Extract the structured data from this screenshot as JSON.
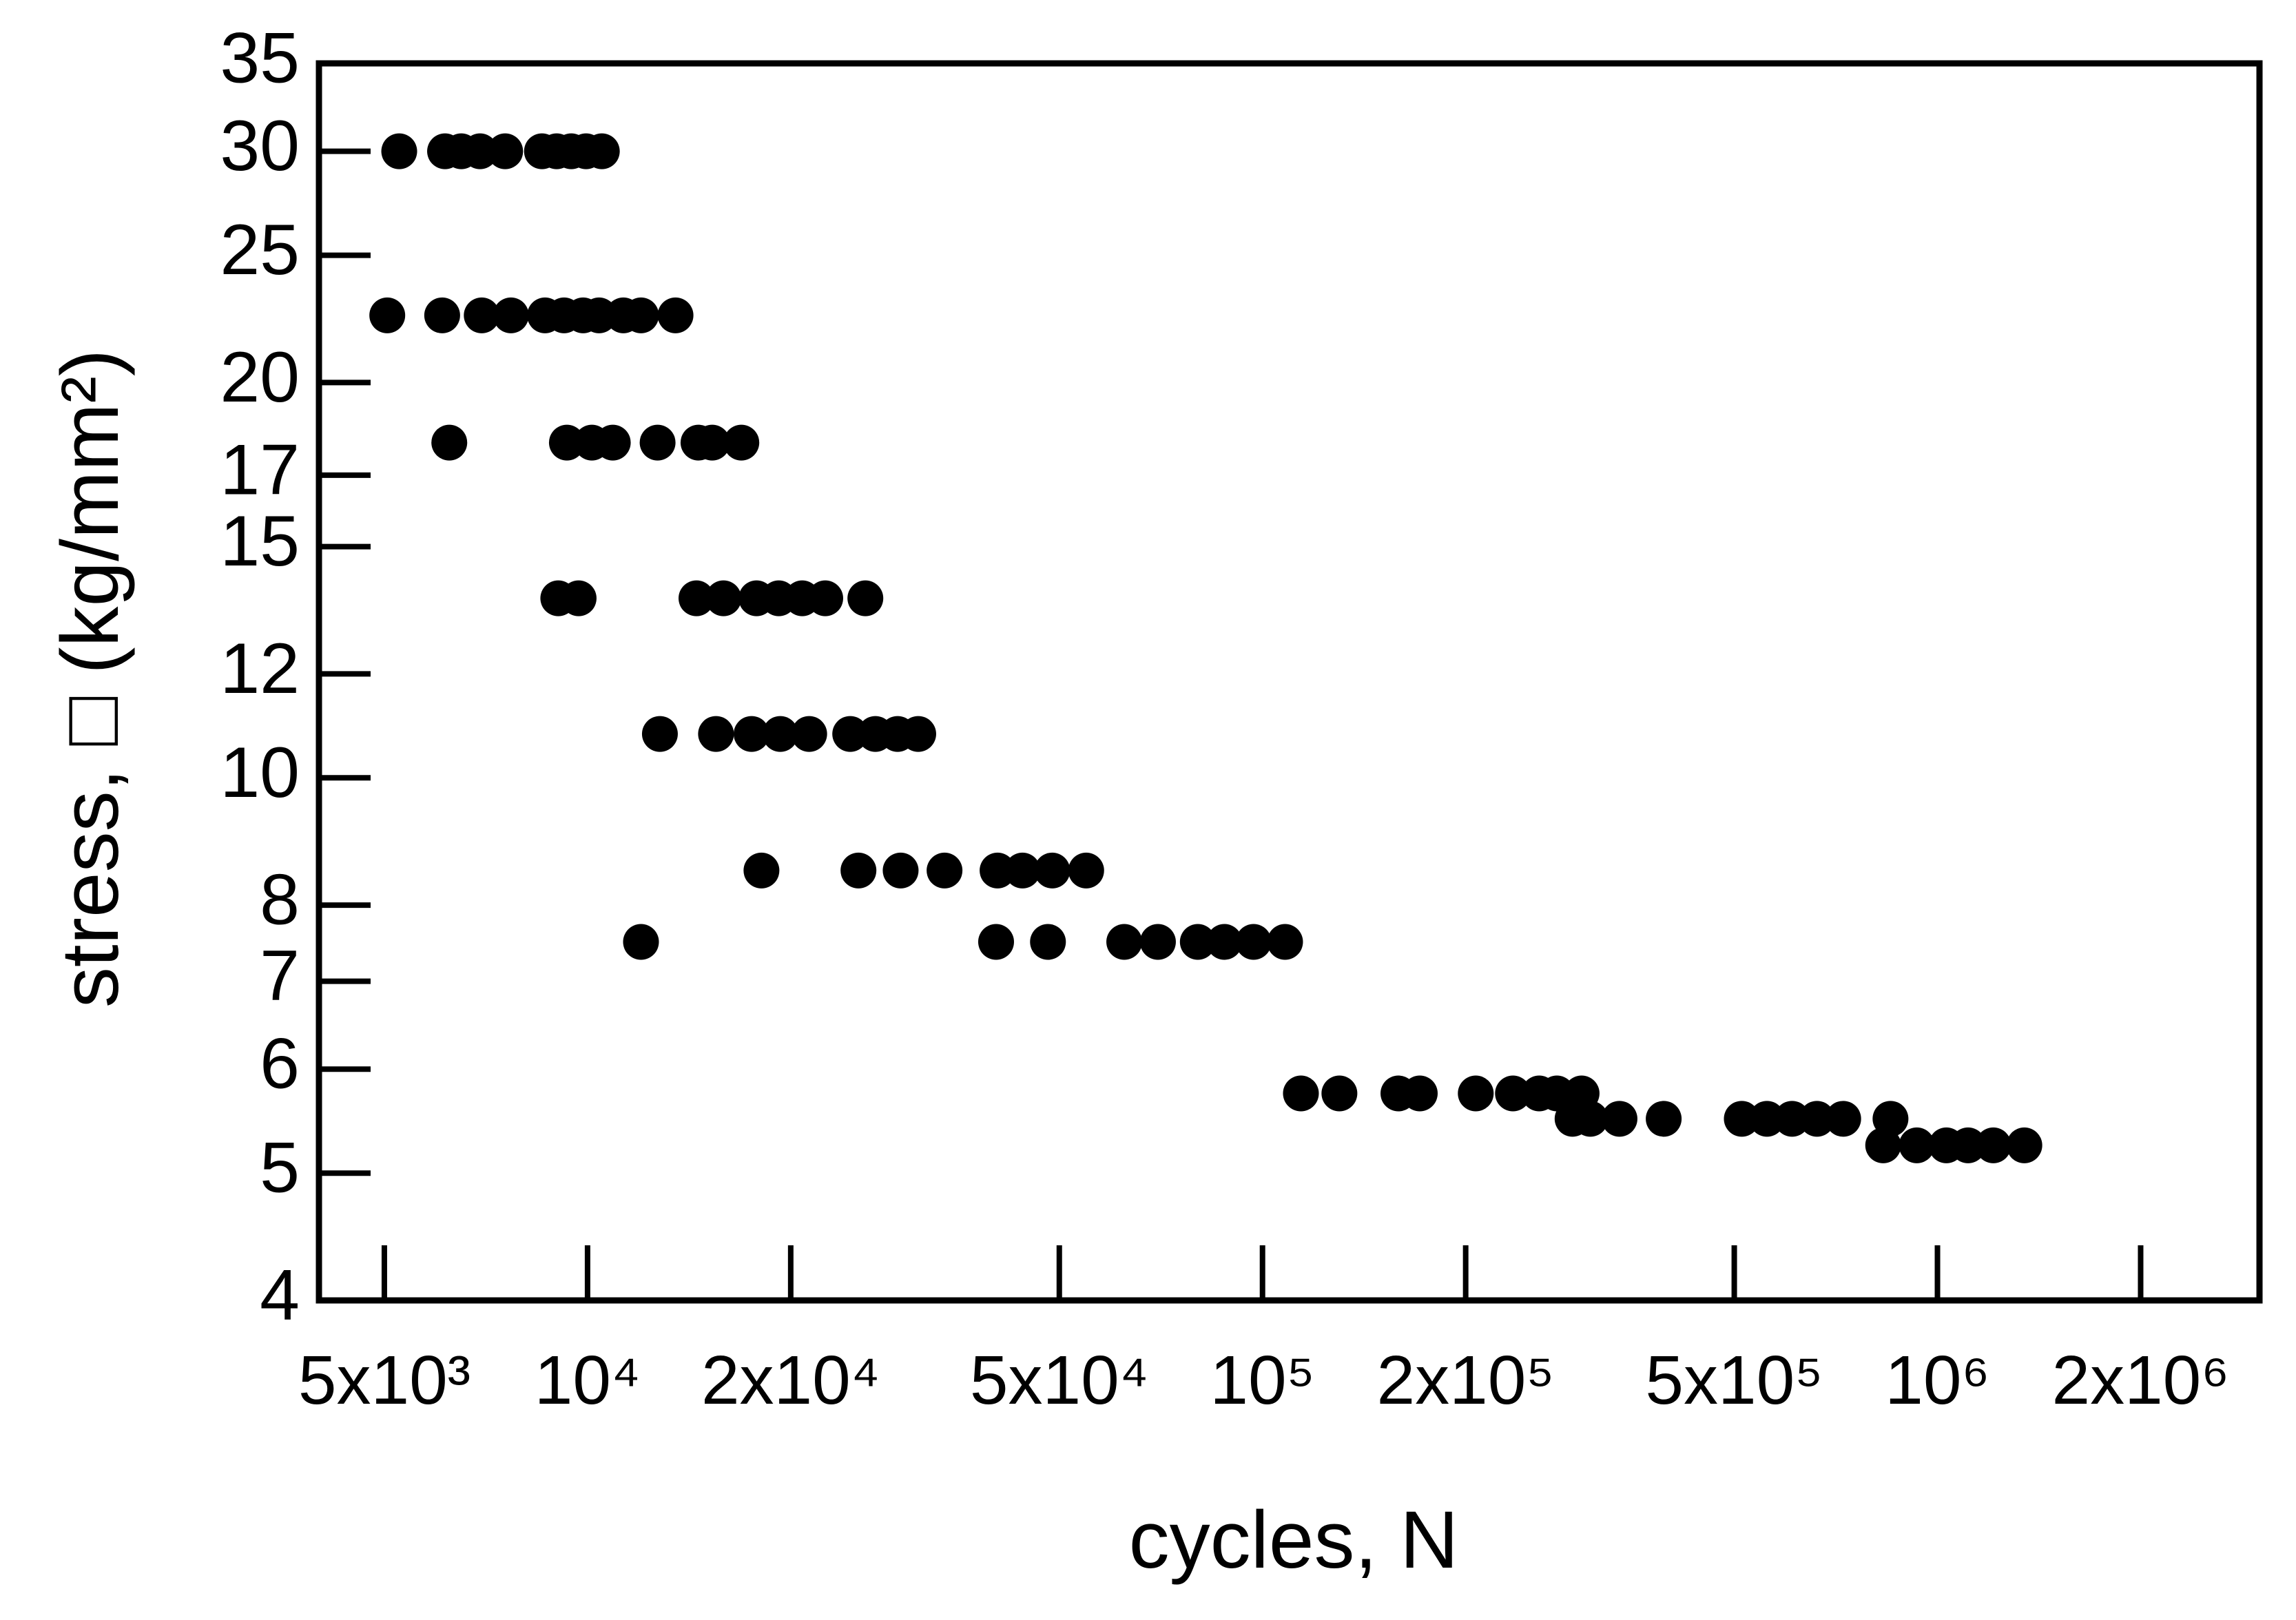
{
  "chart_data": {
    "type": "scatter",
    "x_label": "cycles, N",
    "y_label": "stress, □ (kg/mm²)",
    "xscale": "log",
    "yscale": "log",
    "color": "#000000",
    "xlim": [
      4000,
      3000000
    ],
    "ylim": [
      4,
      35
    ],
    "xticks": [
      {
        "value": 5000,
        "label": "5x10³"
      },
      {
        "value": 10000,
        "label": "10⁴"
      },
      {
        "value": 20000,
        "label": "2x10⁴"
      },
      {
        "value": 50000,
        "label": "5x10⁴"
      },
      {
        "value": 100000,
        "label": "10⁵"
      },
      {
        "value": 200000,
        "label": "2x10⁵"
      },
      {
        "value": 500000,
        "label": "5x10⁵"
      },
      {
        "value": 1000000,
        "label": "10⁶"
      },
      {
        "value": 2000000,
        "label": "2x10⁶"
      }
    ],
    "yticks": [
      4,
      5,
      6,
      7,
      8,
      10,
      12,
      15,
      17,
      20,
      25,
      30,
      35
    ],
    "x": [
      5260,
      6150,
      6500,
      6930,
      7550,
      8560,
      9000,
      9460,
      9950,
      10500,
      5050,
      6090,
      6970,
      7700,
      8650,
      9230,
      9850,
      10400,
      11300,
      12000,
      13500,
      6240,
      9320,
      10150,
      10900,
      12700,
      14600,
      15300,
      16900,
      9050,
      9700,
      14500,
      15900,
      17800,
      19200,
      20800,
      22500,
      25800,
      12800,
      15500,
      17500,
      19300,
      21300,
      24500,
      26700,
      28800,
      30900,
      18100,
      25200,
      29100,
      33800,
      40500,
      44100,
      48800,
      54800,
      12000,
      40300,
      48100,
      62400,
      70000,
      80200,
      87800,
      97000,
      108000,
      114000,
      130000,
      159000,
      171000,
      207000,
      235000,
      257000,
      273000,
      297000,
      288000,
      306000,
      338000,
      393000,
      513000,
      559000,
      609000,
      663000,
      725000,
      852000,
      831000,
      932000,
      1031000,
      1110000,
      1210000,
      1345000
    ],
    "values": [
      30,
      30,
      30,
      30,
      30,
      30,
      30,
      30,
      30,
      30,
      22.5,
      22.5,
      22.5,
      22.5,
      22.5,
      22.5,
      22.5,
      22.5,
      22.5,
      22.5,
      22.5,
      18,
      18,
      18,
      18,
      18,
      18,
      18,
      18,
      13.7,
      13.7,
      13.7,
      13.7,
      13.7,
      13.7,
      13.7,
      13.7,
      13.7,
      10.8,
      10.8,
      10.8,
      10.8,
      10.8,
      10.8,
      10.8,
      10.8,
      10.8,
      8.5,
      8.5,
      8.5,
      8.5,
      8.5,
      8.5,
      8.5,
      8.5,
      7.5,
      7.5,
      7.5,
      7.5,
      7.5,
      7.5,
      7.5,
      7.5,
      7.5,
      5.75,
      5.75,
      5.75,
      5.75,
      5.75,
      5.75,
      5.75,
      5.75,
      5.75,
      5.5,
      5.5,
      5.5,
      5.5,
      5.5,
      5.5,
      5.5,
      5.5,
      5.5,
      5.5,
      5.25,
      5.25,
      5.25,
      5.25,
      5.25,
      5.25
    ]
  }
}
